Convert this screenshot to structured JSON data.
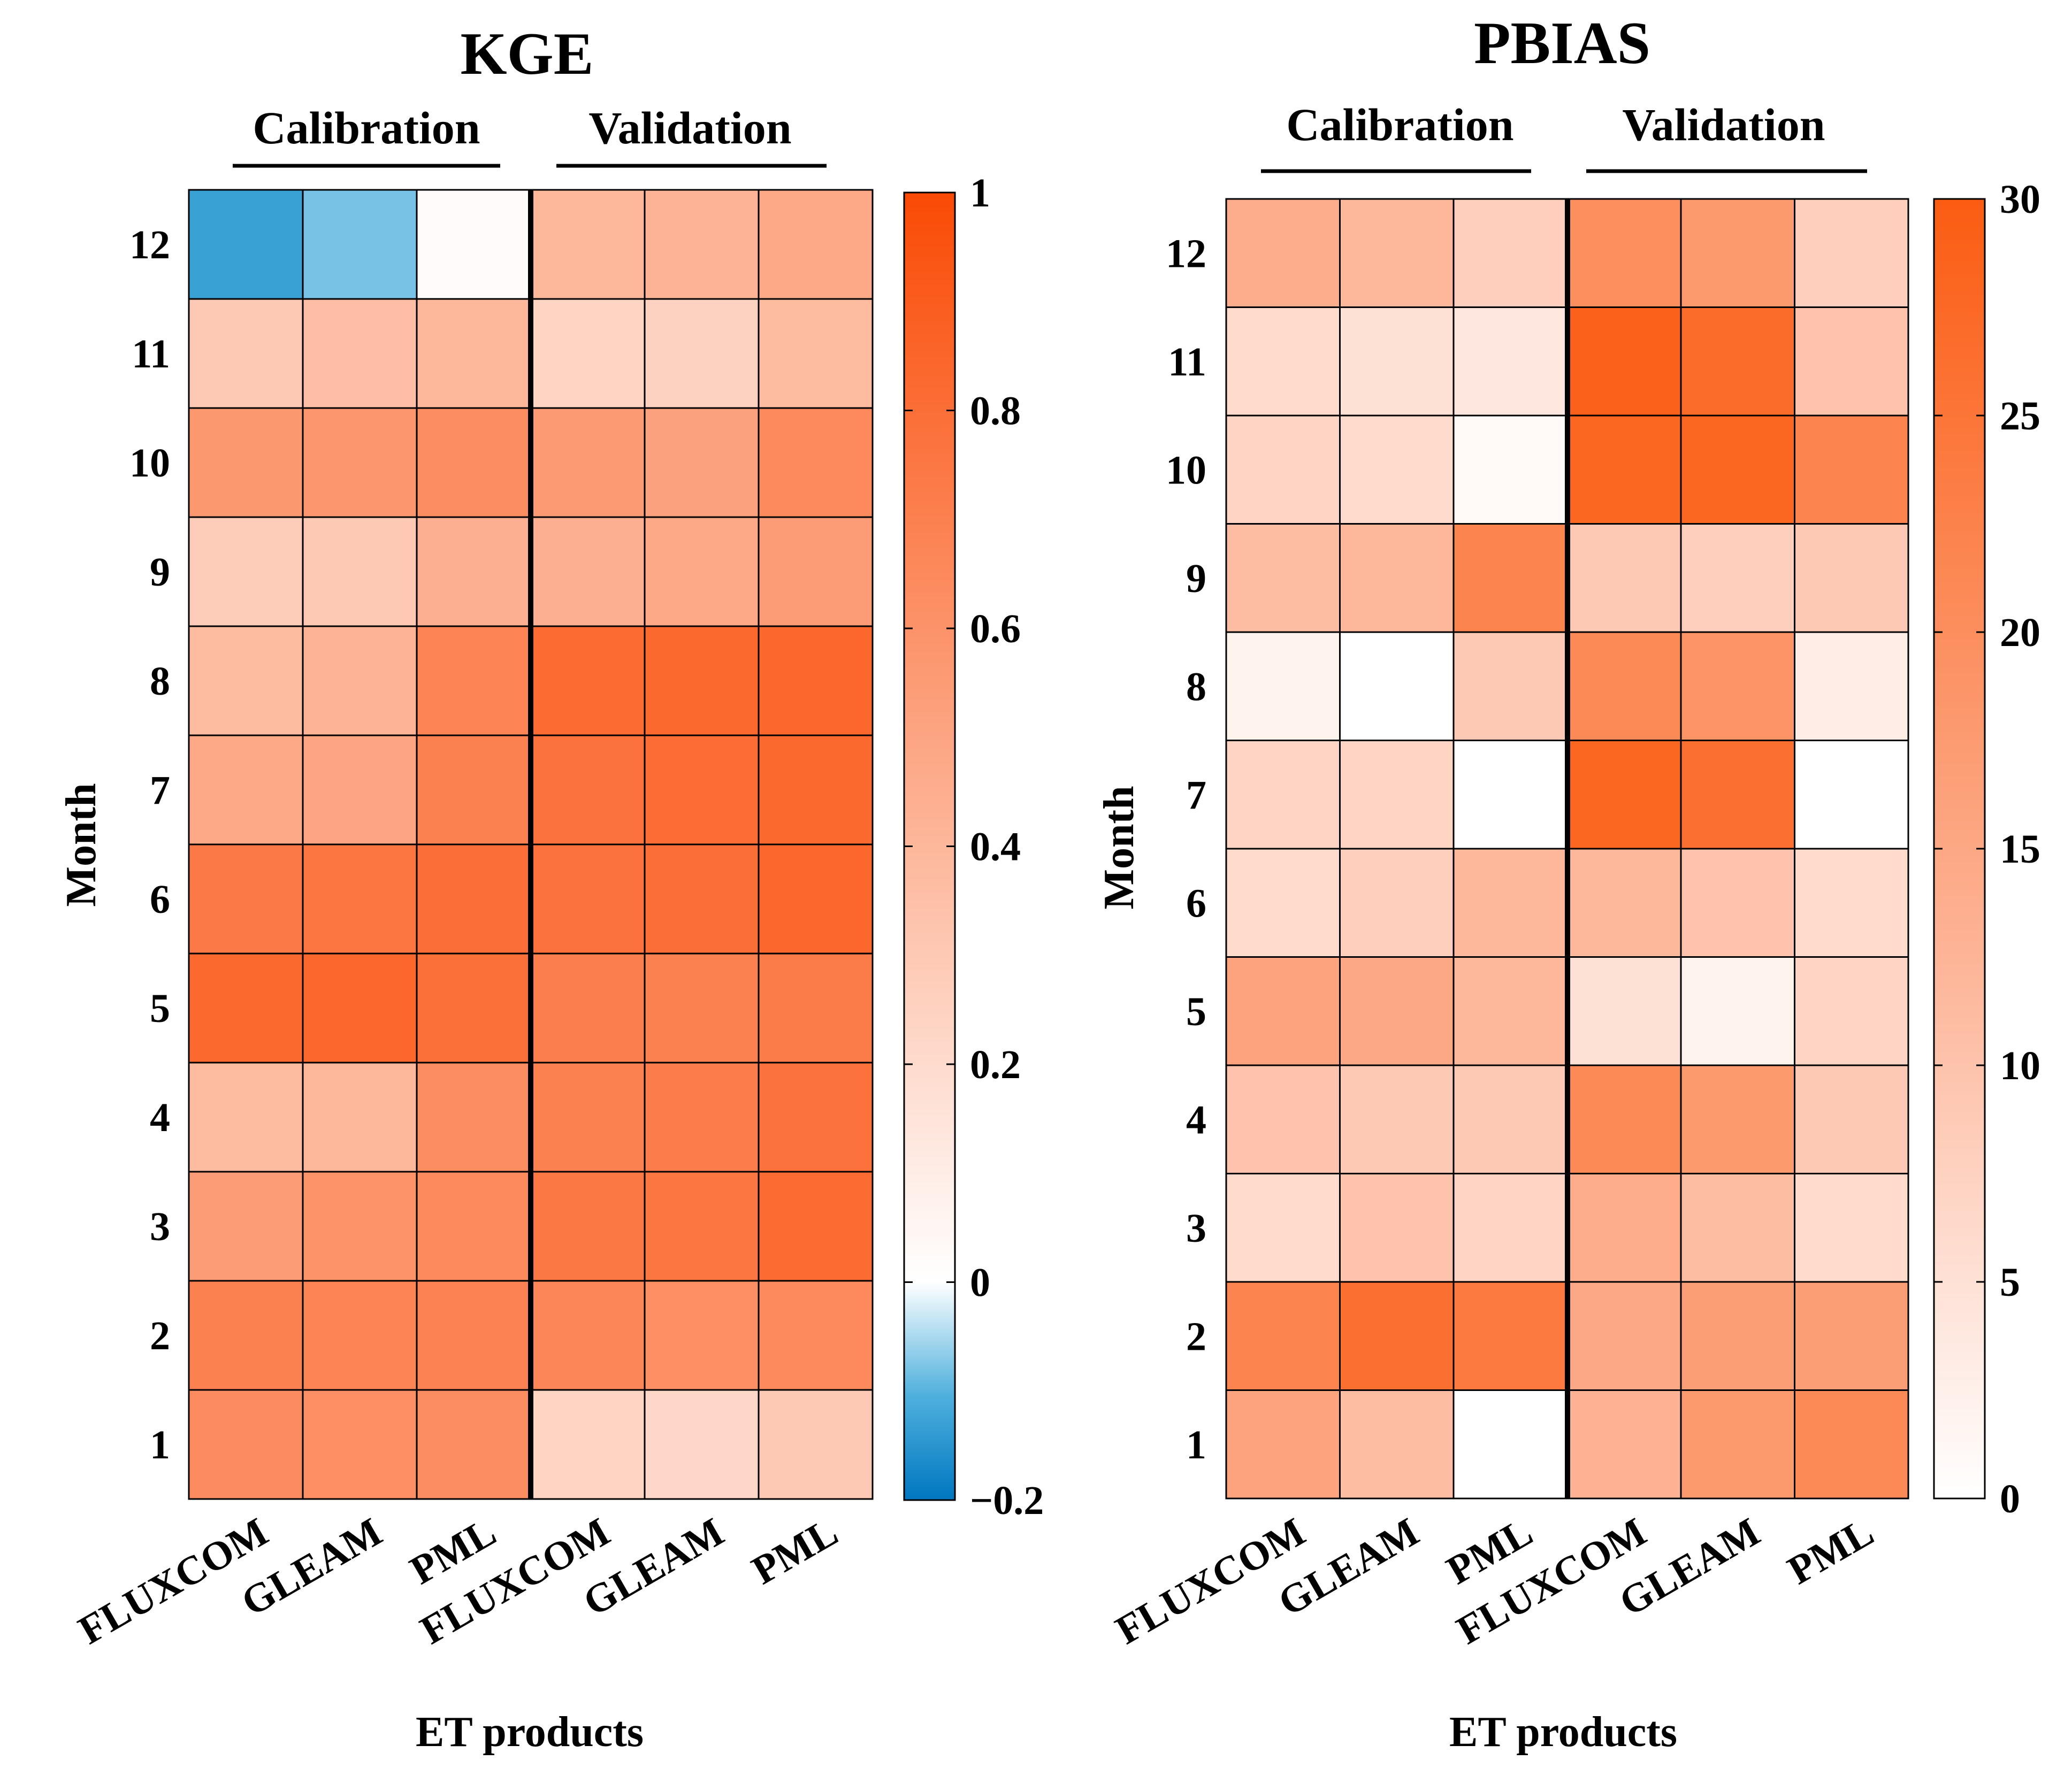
{
  "chart_data": [
    {
      "type": "heatmap",
      "title": "KGE",
      "xlabel": "ET products",
      "ylabel": "Month",
      "groups": [
        "Calibration",
        "Validation"
      ],
      "categories": [
        "FLUXCOM",
        "GLEAM",
        "PML",
        "FLUXCOM",
        "GLEAM",
        "PML"
      ],
      "months": [
        "1",
        "2",
        "3",
        "4",
        "5",
        "6",
        "7",
        "8",
        "9",
        "10",
        "11",
        "12"
      ],
      "values": [
        [
          0.64,
          0.62,
          0.63,
          0.24,
          0.22,
          0.3
        ],
        [
          0.7,
          0.68,
          0.69,
          0.67,
          0.62,
          0.65
        ],
        [
          0.55,
          0.6,
          0.65,
          0.75,
          0.76,
          0.82
        ],
        [
          0.38,
          0.4,
          0.63,
          0.7,
          0.72,
          0.78
        ],
        [
          0.83,
          0.84,
          0.79,
          0.71,
          0.7,
          0.73
        ],
        [
          0.74,
          0.76,
          0.8,
          0.78,
          0.8,
          0.84
        ],
        [
          0.48,
          0.5,
          0.7,
          0.78,
          0.81,
          0.83
        ],
        [
          0.38,
          0.42,
          0.68,
          0.82,
          0.83,
          0.84
        ],
        [
          0.28,
          0.3,
          0.44,
          0.44,
          0.48,
          0.55
        ],
        [
          0.57,
          0.58,
          0.63,
          0.56,
          0.52,
          0.65
        ],
        [
          0.3,
          0.36,
          0.4,
          0.24,
          0.25,
          0.38
        ],
        [
          -0.13,
          -0.08,
          0.02,
          0.4,
          0.42,
          0.48
        ]
      ],
      "colorbar": {
        "min": -0.2,
        "max": 1,
        "ticks": [
          "-0.2",
          "0",
          "0.2",
          "0.4",
          "0.6",
          "0.8",
          "1"
        ]
      }
    },
    {
      "type": "heatmap",
      "title": "PBIAS",
      "xlabel": "ET products",
      "ylabel": "Month",
      "groups": [
        "Calibration",
        "Validation"
      ],
      "categories": [
        "FLUXCOM",
        "GLEAM",
        "PML",
        "FLUXCOM",
        "GLEAM",
        "PML"
      ],
      "months": [
        "1",
        "2",
        "3",
        "4",
        "5",
        "6",
        "7",
        "8",
        "9",
        "10",
        "11",
        "12"
      ],
      "values": [
        [
          16,
          11,
          0,
          13,
          18,
          21
        ],
        [
          22,
          26,
          24,
          15,
          17,
          17
        ],
        [
          6,
          10,
          7,
          14,
          11,
          6
        ],
        [
          10,
          9,
          9,
          21,
          18,
          9
        ],
        [
          16,
          15,
          12,
          5,
          2,
          7
        ],
        [
          6,
          8,
          12,
          12,
          10,
          6
        ],
        [
          7,
          7,
          0,
          28,
          26,
          0
        ],
        [
          2,
          0,
          9,
          21,
          19,
          3
        ],
        [
          11,
          12,
          22,
          9,
          8,
          9
        ],
        [
          7,
          6,
          1,
          28,
          28,
          22
        ],
        [
          6,
          5,
          4,
          29,
          27,
          10
        ],
        [
          14,
          12,
          8,
          20,
          18,
          8
        ]
      ],
      "colorbar": {
        "min": 0,
        "max": 30,
        "ticks": [
          "0",
          "5",
          "10",
          "15",
          "20",
          "25",
          "30"
        ]
      }
    }
  ]
}
